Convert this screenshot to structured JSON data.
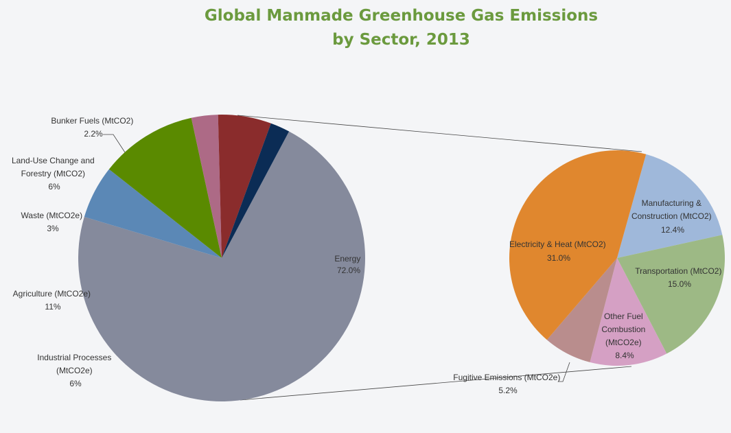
{
  "title": {
    "line1": "Global Manmade Greenhouse Gas Emissions",
    "line2": "by Sector, 2013"
  },
  "colors": {
    "title": "#6b9a3e",
    "background": "#f4f5f7"
  },
  "chart_data": [
    {
      "type": "pie",
      "name": "main",
      "title": "Global Manmade Greenhouse Gas Emissions by Sector, 2013",
      "slices": [
        {
          "label": "Energy",
          "value": 72.0,
          "text": "72.0%",
          "color": "#858a9c"
        },
        {
          "label": "Industrial Processes (MtCO2e)",
          "value": 6,
          "text": "6%",
          "color": "#5b88b6"
        },
        {
          "label": "Agriculture (MtCO2e)",
          "value": 11,
          "text": "11%",
          "color": "#5a8a00"
        },
        {
          "label": "Waste (MtCO2e)",
          "value": 3,
          "text": "3%",
          "color": "#ad6a86"
        },
        {
          "label": "Land-Use Change and Forestry (MtCO2)",
          "value": 6,
          "text": "6%",
          "color": "#8a2c2c"
        },
        {
          "label": "Bunker Fuels (MtCO2)",
          "value": 2.2,
          "text": "2.2%",
          "color": "#0b2c55"
        }
      ]
    },
    {
      "type": "pie",
      "name": "energy-breakdown",
      "title": "Energy",
      "slices": [
        {
          "label": "Manufacturing & Construction (MtCO2)",
          "value": 12.4,
          "text": "12.4%",
          "color": "#9fb8da"
        },
        {
          "label": "Transportation (MtCO2)",
          "value": 15.0,
          "text": "15.0%",
          "color": "#9db985"
        },
        {
          "label": "Other Fuel Combustion (MtCO2e)",
          "value": 8.4,
          "text": "8.4%",
          "color": "#d5a0c4"
        },
        {
          "label": "Fugitive Emissions (MtCO2e)",
          "value": 5.2,
          "text": "5.2%",
          "color": "#b98d8d"
        },
        {
          "label": "Electricity & Heat (MtCO2)",
          "value": 31.0,
          "text": "31.0%",
          "color": "#e0872e"
        }
      ]
    }
  ],
  "labels": {
    "energy": {
      "name": "Energy",
      "pct": "72.0%"
    },
    "industrial": {
      "line1": "Industrial Processes",
      "line2": "(MtCO2e)",
      "pct": "6%"
    },
    "agriculture": {
      "name": "Agriculture (MtCO2e)",
      "pct": "11%"
    },
    "waste": {
      "name": "Waste (MtCO2e)",
      "pct": "3%"
    },
    "landuse": {
      "line1": "Land-Use Change and",
      "line2": "Forestry (MtCO2)",
      "pct": "6%"
    },
    "bunker": {
      "name": "Bunker Fuels (MtCO2)",
      "pct": "2.2%"
    },
    "electricity": {
      "name": "Electricity & Heat (MtCO2)",
      "pct": "31.0%"
    },
    "manufacturing": {
      "line1": "Manufacturing &",
      "line2": "Construction (MtCO2)",
      "pct": "12.4%"
    },
    "transportation": {
      "name": "Transportation (MtCO2)",
      "pct": "15.0%"
    },
    "otherfuel": {
      "line1": "Other Fuel",
      "line2": "Combustion",
      "line3": "(MtCO2e)",
      "pct": "8.4%"
    },
    "fugitive": {
      "name": "Fugitive Emissions (MtCO2e)",
      "pct": "5.2%"
    }
  }
}
